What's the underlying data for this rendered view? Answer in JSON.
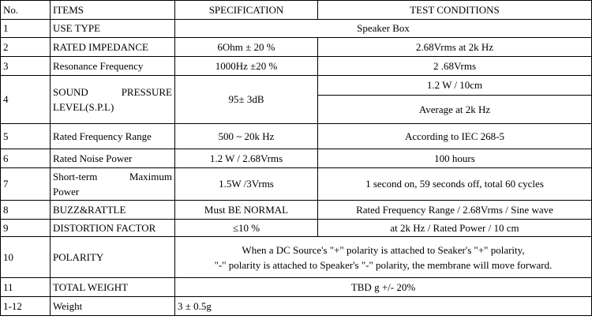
{
  "headers": {
    "no": "No.",
    "items": "ITEMS",
    "spec": "SPECIFICATION",
    "test": "TEST CONDITIONS"
  },
  "rows": {
    "r1": {
      "no": "1",
      "item": "USE TYPE",
      "merged": "Speaker Box"
    },
    "r2": {
      "no": "2",
      "item": "RATED IMPEDANCE",
      "spec": "6Ohm ± 20 %",
      "test": "2.68Vrms at 2k Hz"
    },
    "r3": {
      "no": "3",
      "item": "Resonance Frequency",
      "spec": "1000Hz ±20 %",
      "test": "2 .68Vrms"
    },
    "r4": {
      "no": "4",
      "item_line1": "SOUND PRESSURE",
      "item_line2": "LEVEL(S.P.L)",
      "spec": "95± 3dB",
      "test_a": "1.2 W / 10cm",
      "test_b": "Average at 2k Hz"
    },
    "r5": {
      "no": "5",
      "item": "Rated Frequency Range",
      "spec": "500 ~ 20k Hz",
      "test": "According to IEC 268-5"
    },
    "r6": {
      "no": "6",
      "item": "Rated Noise Power",
      "spec": "1.2 W / 2.68Vrms",
      "test": "100 hours"
    },
    "r7": {
      "no": "7",
      "item_line1": "Short-term Maximum",
      "item_line2": "Power",
      "spec": "1.5W /3Vrms",
      "test": "1 second on, 59 seconds off, total 60 cycles"
    },
    "r8": {
      "no": "8",
      "item": "BUZZ&RATTLE",
      "spec": "Must BE NORMAL",
      "test": "Rated Frequency Range / 2.68Vrms / Sine wave"
    },
    "r9": {
      "no": "9",
      "item": "DISTORTION FACTOR",
      "spec": "≤10 %",
      "test": "at 2k Hz / Rated Power / 10 cm"
    },
    "r10": {
      "no": "10",
      "item": "POLARITY",
      "line1": "When a DC Source's \"+\" polarity is attached to Seaker's \"+\" polarity,",
      "line2": "\"-\" polarity is attached to Speaker's \"-\" polarity, the membrane will move forward."
    },
    "r11": {
      "no": "11",
      "item": "TOTAL WEIGHT",
      "merged": "TBD g +/- 20%"
    },
    "r12": {
      "no": "1-12",
      "item": "Weight",
      "merged": "3 ± 0.5g"
    }
  }
}
